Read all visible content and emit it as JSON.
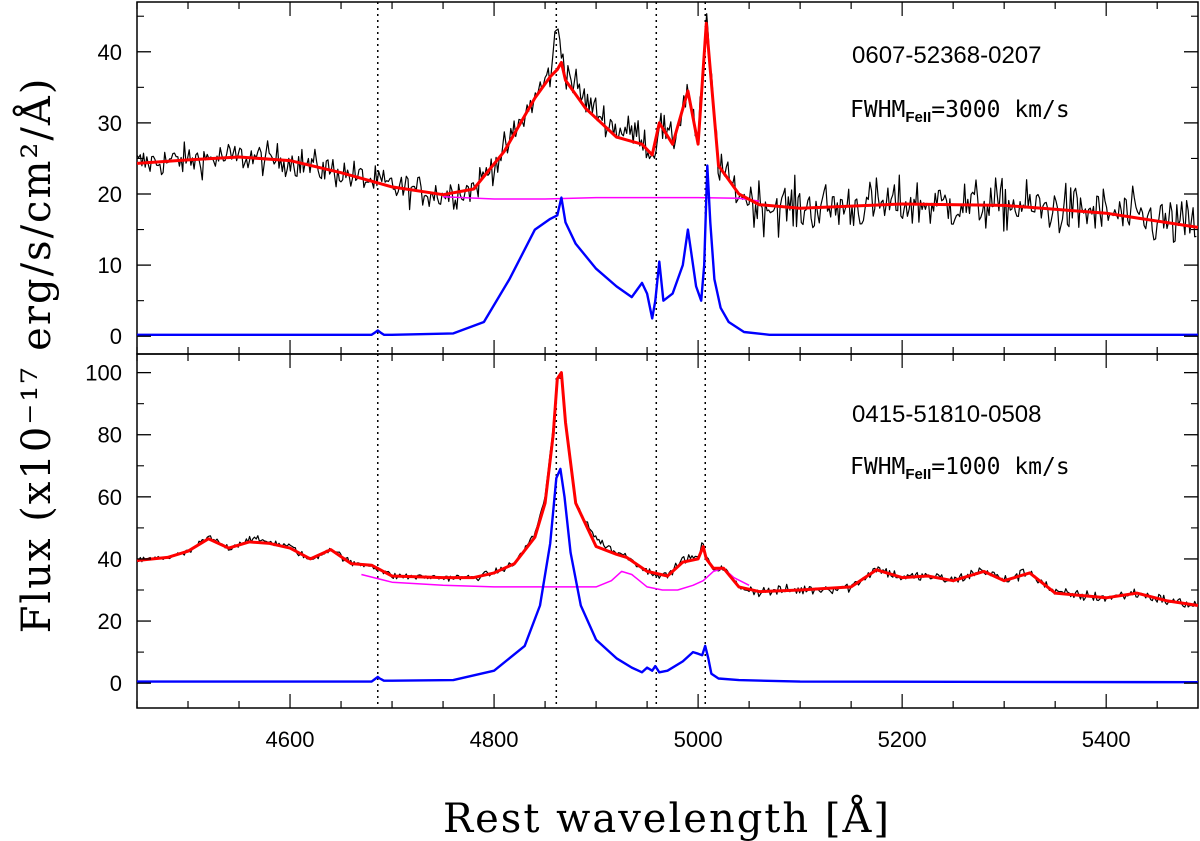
{
  "chart_data": {
    "type": "line",
    "xlabel": "Rest wavelength [Å]",
    "ylabel": "Flux (x10⁻¹⁷ erg/s/cm²/Å)",
    "xlim": [
      4450,
      5490
    ],
    "x_ticks": [
      4600,
      4800,
      5000,
      5200,
      5400
    ],
    "x_tick_labels": [
      "4600",
      "4800",
      "5000",
      "5200",
      "5400"
    ],
    "reference_lines_x": [
      4686,
      4861,
      4959,
      5007
    ],
    "series_colors": {
      "observed": "#000000",
      "total_fit": "#ff0000",
      "feii_continuum": "#ff00ff",
      "emission_lines": "#0000ff"
    },
    "panels": [
      {
        "id": "top",
        "object_id": "0607-52368-0207",
        "fwhm_prefix": "FWHM",
        "fwhm_subscript": "FeII",
        "fwhm_value": "=3000 km/s",
        "ylim": [
          -2.5,
          47
        ],
        "y_ticks": [
          0,
          10,
          20,
          30,
          40
        ],
        "y_tick_labels": [
          "0",
          "10",
          "20",
          "30",
          "40"
        ],
        "noise": 1.6,
        "series": [
          {
            "name": "observed",
            "x": [
              4450,
              4500,
              4550,
              4600,
              4650,
              4700,
              4750,
              4780,
              4810,
              4840,
              4855,
              4862,
              4870,
              4890,
              4920,
              4945,
              4955,
              4962,
              4975,
              4990,
              5000,
              5008,
              5020,
              5040,
              5060,
              5100,
              5200,
              5300,
              5400,
              5490
            ],
            "values": [
              24.3,
              24.8,
              25.2,
              24.7,
              23.0,
              21.0,
              19.9,
              20.8,
              26.0,
              33.5,
              37.0,
              43.5,
              37.5,
              33.0,
              29.0,
              28.5,
              25.0,
              30.0,
              27.0,
              35.0,
              27.0,
              44.5,
              24.0,
              20.0,
              18.5,
              18.0,
              18.6,
              18.4,
              17.3,
              15.3
            ]
          },
          {
            "name": "total_fit",
            "x": [
              4450,
              4500,
              4550,
              4600,
              4650,
              4700,
              4750,
              4780,
              4810,
              4840,
              4855,
              4862,
              4866,
              4870,
              4890,
              4920,
              4945,
              4955,
              4962,
              4975,
              4990,
              5000,
              5008,
              5020,
              5040,
              5060,
              5100,
              5200,
              5300,
              5400,
              5490
            ],
            "values": [
              24.3,
              24.8,
              25.2,
              24.7,
              23.0,
              21.0,
              19.9,
              20.7,
              26.0,
              33.5,
              36.5,
              37.5,
              38.5,
              36.0,
              32.0,
              28.0,
              27.0,
              25.5,
              30.0,
              27.0,
              34.5,
              27.0,
              44.0,
              24.0,
              20.0,
              18.5,
              18.0,
              18.6,
              18.4,
              17.3,
              15.3
            ]
          },
          {
            "name": "feii_continuum",
            "x": [
              4750,
              4800,
              4850,
              4900,
              4950,
              5000,
              5040,
              5060
            ],
            "values": [
              19.6,
              19.3,
              19.3,
              19.5,
              19.5,
              19.5,
              19.4,
              19.0
            ]
          },
          {
            "name": "emission_lines",
            "x": [
              4450,
              4680,
              4683,
              4686,
              4689,
              4692,
              4700,
              4760,
              4790,
              4815,
              4840,
              4855,
              4862,
              4866,
              4870,
              4880,
              4900,
              4920,
              4935,
              4940,
              4945,
              4950,
              4955,
              4958,
              4962,
              4966,
              4975,
              4985,
              4990,
              4993,
              4998,
              5003,
              5006,
              5009,
              5012,
              5016,
              5022,
              5030,
              5045,
              5070,
              5490
            ],
            "values": [
              0.2,
              0.2,
              0.5,
              0.8,
              0.5,
              0.2,
              0.2,
              0.4,
              2.0,
              8.0,
              15.0,
              16.5,
              17.0,
              19.5,
              16.0,
              13.0,
              9.5,
              7.0,
              5.5,
              6.5,
              7.5,
              6.0,
              2.5,
              5.0,
              10.5,
              5.0,
              6.0,
              10.0,
              15.0,
              12.0,
              7.0,
              5.0,
              10.0,
              24.0,
              16.0,
              8.0,
              4.0,
              2.0,
              0.6,
              0.2,
              0.2
            ]
          }
        ]
      },
      {
        "id": "bottom",
        "object_id": "0415-51810-0508",
        "fwhm_prefix": "FWHM",
        "fwhm_subscript": "FeII",
        "fwhm_value": "=1000 km/s",
        "ylim": [
          -8,
          106
        ],
        "y_ticks": [
          0,
          20,
          40,
          60,
          80,
          100
        ],
        "y_tick_labels": [
          "0",
          "20",
          "40",
          "60",
          "80",
          "100"
        ],
        "noise": 0.8,
        "series": [
          {
            "name": "observed",
            "x": [
              4450,
              4480,
              4500,
              4520,
              4540,
              4560,
              4580,
              4600,
              4620,
              4640,
              4660,
              4680,
              4700,
              4750,
              4780,
              4800,
              4820,
              4840,
              4850,
              4858,
              4862,
              4866,
              4870,
              4880,
              4900,
              4920,
              4930,
              4950,
              4970,
              4985,
              5000,
              5005,
              5008,
              5015,
              5025,
              5040,
              5060,
              5100,
              5150,
              5175,
              5200,
              5225,
              5250,
              5280,
              5300,
              5325,
              5350,
              5400,
              5430,
              5460,
              5490
            ],
            "values": [
              39.5,
              40.5,
              42.0,
              47.0,
              43.5,
              46.5,
              45.5,
              44.0,
              39.5,
              43.5,
              38.5,
              38.0,
              34.5,
              34.0,
              34.0,
              35.5,
              38.5,
              48.0,
              60.0,
              82.0,
              100.0,
              98.0,
              82.0,
              58.0,
              46.5,
              42.0,
              41.0,
              36.0,
              34.5,
              40.0,
              40.5,
              45.5,
              40.0,
              37.0,
              37.0,
              31.0,
              29.5,
              30.0,
              31.0,
              37.0,
              34.0,
              34.5,
              33.0,
              36.5,
              33.0,
              36.0,
              29.0,
              27.5,
              29.0,
              26.5,
              25.0
            ]
          },
          {
            "name": "total_fit",
            "x": [
              4450,
              4480,
              4500,
              4520,
              4540,
              4560,
              4580,
              4600,
              4620,
              4640,
              4660,
              4680,
              4700,
              4750,
              4780,
              4800,
              4820,
              4840,
              4850,
              4858,
              4862,
              4866,
              4870,
              4880,
              4900,
              4920,
              4930,
              4950,
              4970,
              4985,
              5000,
              5005,
              5008,
              5015,
              5025,
              5040,
              5060,
              5100,
              5150,
              5175,
              5200,
              5225,
              5250,
              5280,
              5300,
              5325,
              5350,
              5400,
              5430,
              5460,
              5490
            ],
            "values": [
              39.5,
              40.5,
              42.5,
              46.5,
              43.5,
              45.5,
              45.0,
              43.5,
              40.0,
              43.0,
              38.5,
              38.0,
              34.5,
              34.0,
              34.0,
              35.5,
              38.5,
              47.0,
              58.0,
              80.0,
              98.0,
              100.0,
              84.0,
              58.0,
              44.0,
              41.5,
              40.5,
              36.0,
              34.5,
              39.0,
              40.0,
              44.0,
              40.0,
              37.0,
              37.0,
              31.0,
              29.5,
              30.0,
              31.0,
              36.5,
              34.0,
              34.5,
              33.0,
              36.0,
              33.0,
              35.5,
              29.0,
              27.5,
              29.0,
              26.5,
              25.0
            ]
          },
          {
            "name": "feii_continuum",
            "x": [
              4670,
              4700,
              4750,
              4800,
              4850,
              4900,
              4915,
              4925,
              4935,
              4950,
              4965,
              4980,
              4995,
              5005,
              5015,
              5025,
              5035,
              5050
            ],
            "values": [
              35.0,
              32.5,
              31.5,
              31.0,
              31.0,
              31.0,
              33.0,
              36.0,
              35.0,
              31.0,
              30.0,
              30.0,
              31.5,
              33.0,
              36.0,
              37.0,
              34.0,
              31.5
            ]
          },
          {
            "name": "emission_lines",
            "x": [
              4450,
              4680,
              4684,
              4686,
              4688,
              4692,
              4700,
              4760,
              4800,
              4830,
              4845,
              4855,
              4861,
              4865,
              4869,
              4875,
              4885,
              4900,
              4920,
              4935,
              4945,
              4950,
              4955,
              4958,
              4962,
              4970,
              4985,
              4995,
              5000,
              5004,
              5007,
              5010,
              5013,
              5020,
              5040,
              5100,
              5490
            ],
            "values": [
              0.5,
              0.5,
              1.5,
              2.0,
              1.5,
              0.8,
              0.8,
              1.0,
              4.0,
              12.0,
              25.0,
              45.0,
              66.0,
              69.0,
              60.0,
              42.0,
              25.0,
              14.0,
              8.0,
              5.0,
              3.5,
              5.0,
              4.0,
              5.5,
              3.5,
              4.0,
              7.0,
              10.0,
              9.5,
              9.0,
              12.0,
              8.0,
              3.0,
              1.5,
              1.0,
              0.5,
              0.3
            ]
          }
        ]
      }
    ]
  }
}
